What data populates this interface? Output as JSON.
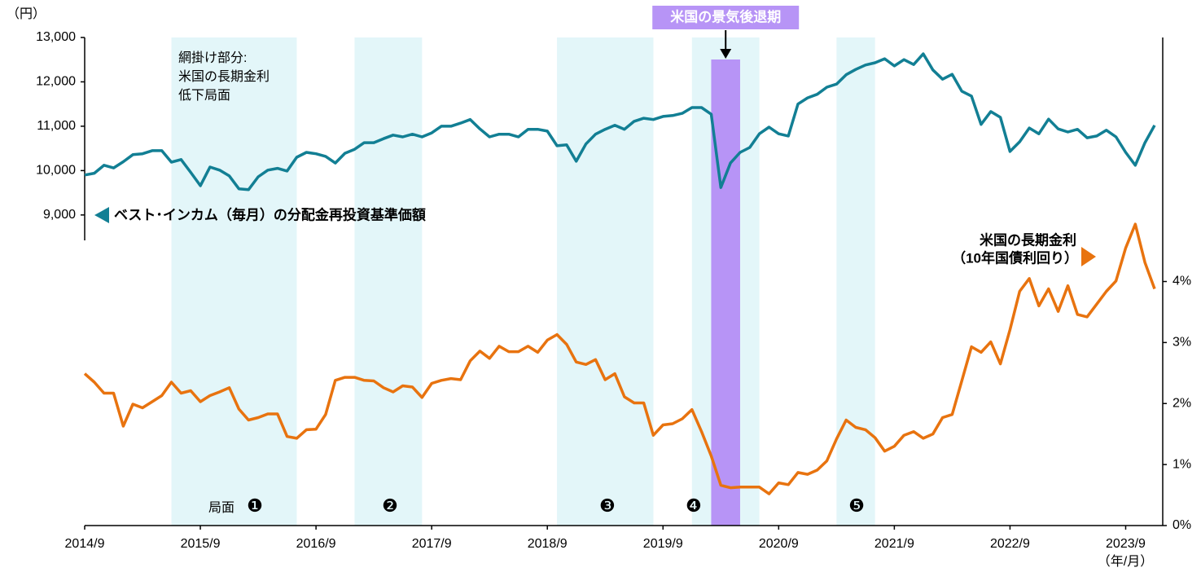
{
  "chart_data": {
    "type": "line",
    "y_unit": "（円）",
    "x_unit": "（年/月）",
    "x": [
      "2014/9",
      "2014/10",
      "2014/11",
      "2014/12",
      "2015/1",
      "2015/2",
      "2015/3",
      "2015/4",
      "2015/5",
      "2015/6",
      "2015/7",
      "2015/8",
      "2015/9",
      "2015/10",
      "2015/11",
      "2015/12",
      "2016/1",
      "2016/2",
      "2016/3",
      "2016/4",
      "2016/5",
      "2016/6",
      "2016/7",
      "2016/8",
      "2016/9",
      "2016/10",
      "2016/11",
      "2016/12",
      "2017/1",
      "2017/2",
      "2017/3",
      "2017/4",
      "2017/5",
      "2017/6",
      "2017/7",
      "2017/8",
      "2017/9",
      "2017/10",
      "2017/11",
      "2017/12",
      "2018/1",
      "2018/2",
      "2018/3",
      "2018/4",
      "2018/5",
      "2018/6",
      "2018/7",
      "2018/8",
      "2018/9",
      "2018/10",
      "2018/11",
      "2018/12",
      "2019/1",
      "2019/2",
      "2019/3",
      "2019/4",
      "2019/5",
      "2019/6",
      "2019/7",
      "2019/8",
      "2019/9",
      "2019/10",
      "2019/11",
      "2019/12",
      "2020/1",
      "2020/2",
      "2020/3",
      "2020/4",
      "2020/5",
      "2020/6",
      "2020/7",
      "2020/8",
      "2020/9",
      "2020/10",
      "2020/11",
      "2020/12",
      "2021/1",
      "2021/2",
      "2021/3",
      "2021/4",
      "2021/5",
      "2021/6",
      "2021/7",
      "2021/8",
      "2021/9",
      "2021/10",
      "2021/11",
      "2021/12",
      "2022/1",
      "2022/2",
      "2022/3",
      "2022/4",
      "2022/5",
      "2022/6",
      "2022/7",
      "2022/8",
      "2022/9",
      "2022/10",
      "2022/11",
      "2022/12",
      "2023/1",
      "2023/2",
      "2023/3",
      "2023/4",
      "2023/5",
      "2023/6",
      "2023/7",
      "2023/8",
      "2023/9",
      "2023/10",
      "2023/11",
      "2023/12"
    ],
    "xlim": [
      "2014/9",
      "2023/12"
    ],
    "xticks": [
      "2014/9",
      "2015/9",
      "2016/9",
      "2017/9",
      "2018/9",
      "2019/9",
      "2020/9",
      "2021/9",
      "2022/9",
      "2023/9"
    ],
    "ylim": [
      2000,
      13000
    ],
    "yticks": [
      {
        "value": 9000,
        "label": "9,000"
      },
      {
        "value": 10000,
        "label": "10,000"
      },
      {
        "value": 11000,
        "label": "11,000"
      },
      {
        "value": 12000,
        "label": "12,000"
      },
      {
        "value": 13000,
        "label": "13,000"
      }
    ],
    "y2lim": [
      0,
      8
    ],
    "y2ticks": [
      {
        "value": 0,
        "label": "0%"
      },
      {
        "value": 1,
        "label": "1%"
      },
      {
        "value": 2,
        "label": "2%"
      },
      {
        "value": 3,
        "label": "3%"
      },
      {
        "value": 4,
        "label": "4%"
      }
    ],
    "series": [
      {
        "name": "ベスト･インカム（毎月）の分配金再投資基準価額",
        "color": "#127f94",
        "axis": "y",
        "values": [
          9900,
          9940,
          10120,
          10060,
          10200,
          10360,
          10380,
          10450,
          10450,
          10190,
          10250,
          9960,
          9660,
          10080,
          10010,
          9880,
          9590,
          9570,
          9860,
          10010,
          10050,
          9990,
          10300,
          10410,
          10380,
          10320,
          10170,
          10390,
          10480,
          10630,
          10630,
          10720,
          10800,
          10760,
          10820,
          10760,
          10850,
          11000,
          11000,
          11070,
          11150,
          10940,
          10760,
          10820,
          10820,
          10760,
          10930,
          10930,
          10890,
          10560,
          10580,
          10210,
          10600,
          10820,
          10930,
          11020,
          10930,
          11110,
          11180,
          11150,
          11220,
          11240,
          11290,
          11420,
          11420,
          11270,
          9620,
          10170,
          10410,
          10520,
          10830,
          10980,
          10830,
          10780,
          11500,
          11640,
          11720,
          11880,
          11950,
          12160,
          12280,
          12380,
          12430,
          12520,
          12360,
          12500,
          12390,
          12630,
          12270,
          12060,
          12170,
          11790,
          11680,
          11040,
          11330,
          11200,
          10430,
          10650,
          10960,
          10830,
          11160,
          10940,
          10870,
          10930,
          10740,
          10780,
          10910,
          10760,
          10410,
          10120,
          10630,
          11020
        ]
      },
      {
        "name": "米国の長期金利",
        "name2": "（10年国債利回り）",
        "color": "#e8730f",
        "axis": "y2",
        "values": [
          2.49,
          2.35,
          2.17,
          2.17,
          1.63,
          1.99,
          1.93,
          2.03,
          2.13,
          2.35,
          2.17,
          2.21,
          2.03,
          2.13,
          2.19,
          2.26,
          1.91,
          1.73,
          1.77,
          1.83,
          1.83,
          1.46,
          1.43,
          1.57,
          1.58,
          1.82,
          2.38,
          2.43,
          2.43,
          2.38,
          2.37,
          2.26,
          2.19,
          2.29,
          2.27,
          2.1,
          2.33,
          2.38,
          2.41,
          2.39,
          2.7,
          2.86,
          2.74,
          2.94,
          2.85,
          2.85,
          2.94,
          2.84,
          3.04,
          3.13,
          2.97,
          2.68,
          2.64,
          2.72,
          2.39,
          2.49,
          2.11,
          2.01,
          2.01,
          1.48,
          1.65,
          1.67,
          1.75,
          1.9,
          1.54,
          1.14,
          0.66,
          0.62,
          0.63,
          0.63,
          0.63,
          0.52,
          0.7,
          0.67,
          0.87,
          0.84,
          0.91,
          1.06,
          1.42,
          1.73,
          1.61,
          1.57,
          1.44,
          1.22,
          1.3,
          1.48,
          1.54,
          1.43,
          1.5,
          1.77,
          1.82,
          2.37,
          2.93,
          2.84,
          3.01,
          2.65,
          3.21,
          3.84,
          4.05,
          3.6,
          3.88,
          3.51,
          3.93,
          3.46,
          3.42,
          3.63,
          3.84,
          4.01,
          4.55,
          4.94,
          4.31,
          3.88
        ]
      }
    ],
    "shade_note": [
      "網掛け部分:",
      "米国の長期金利",
      "低下局面"
    ],
    "shade_color": "#e3f6f9",
    "phase_prefix": "局面",
    "phases": [
      {
        "start": "2015/6",
        "end": "2016/7",
        "label": "❶"
      },
      {
        "start": "2017/1",
        "end": "2017/8",
        "label": "❷"
      },
      {
        "start": "2018/10",
        "end": "2019/8",
        "label": "❸"
      },
      {
        "start": "2019/12",
        "end": "2020/7",
        "label": "❹"
      },
      {
        "start": "2021/3",
        "end": "2021/7",
        "label": "❺"
      }
    ],
    "recession": {
      "start": "2020/2",
      "end": "2020/5",
      "label": "米国の景気後退期",
      "color": "#b794f6"
    }
  }
}
